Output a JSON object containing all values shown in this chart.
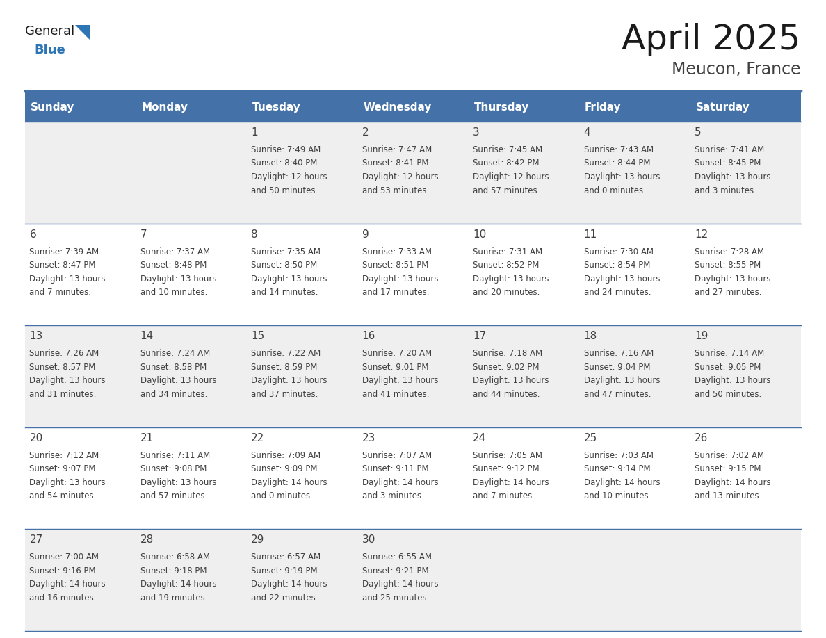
{
  "title": "April 2025",
  "subtitle": "Meucon, France",
  "header_bg_color": "#4472A8",
  "header_text_color": "#FFFFFF",
  "row_bg_colors": [
    "#EFEFEF",
    "#FFFFFF",
    "#EFEFEF",
    "#FFFFFF",
    "#EFEFEF"
  ],
  "border_color": "#4472A8",
  "text_color": "#404040",
  "days_of_week": [
    "Sunday",
    "Monday",
    "Tuesday",
    "Wednesday",
    "Thursday",
    "Friday",
    "Saturday"
  ],
  "calendar_data": [
    [
      {
        "day": "",
        "sunrise": "",
        "sunset": "",
        "daylight_line1": "",
        "daylight_line2": ""
      },
      {
        "day": "",
        "sunrise": "",
        "sunset": "",
        "daylight_line1": "",
        "daylight_line2": ""
      },
      {
        "day": "1",
        "sunrise": "Sunrise: 7:49 AM",
        "sunset": "Sunset: 8:40 PM",
        "daylight_line1": "Daylight: 12 hours",
        "daylight_line2": "and 50 minutes."
      },
      {
        "day": "2",
        "sunrise": "Sunrise: 7:47 AM",
        "sunset": "Sunset: 8:41 PM",
        "daylight_line1": "Daylight: 12 hours",
        "daylight_line2": "and 53 minutes."
      },
      {
        "day": "3",
        "sunrise": "Sunrise: 7:45 AM",
        "sunset": "Sunset: 8:42 PM",
        "daylight_line1": "Daylight: 12 hours",
        "daylight_line2": "and 57 minutes."
      },
      {
        "day": "4",
        "sunrise": "Sunrise: 7:43 AM",
        "sunset": "Sunset: 8:44 PM",
        "daylight_line1": "Daylight: 13 hours",
        "daylight_line2": "and 0 minutes."
      },
      {
        "day": "5",
        "sunrise": "Sunrise: 7:41 AM",
        "sunset": "Sunset: 8:45 PM",
        "daylight_line1": "Daylight: 13 hours",
        "daylight_line2": "and 3 minutes."
      }
    ],
    [
      {
        "day": "6",
        "sunrise": "Sunrise: 7:39 AM",
        "sunset": "Sunset: 8:47 PM",
        "daylight_line1": "Daylight: 13 hours",
        "daylight_line2": "and 7 minutes."
      },
      {
        "day": "7",
        "sunrise": "Sunrise: 7:37 AM",
        "sunset": "Sunset: 8:48 PM",
        "daylight_line1": "Daylight: 13 hours",
        "daylight_line2": "and 10 minutes."
      },
      {
        "day": "8",
        "sunrise": "Sunrise: 7:35 AM",
        "sunset": "Sunset: 8:50 PM",
        "daylight_line1": "Daylight: 13 hours",
        "daylight_line2": "and 14 minutes."
      },
      {
        "day": "9",
        "sunrise": "Sunrise: 7:33 AM",
        "sunset": "Sunset: 8:51 PM",
        "daylight_line1": "Daylight: 13 hours",
        "daylight_line2": "and 17 minutes."
      },
      {
        "day": "10",
        "sunrise": "Sunrise: 7:31 AM",
        "sunset": "Sunset: 8:52 PM",
        "daylight_line1": "Daylight: 13 hours",
        "daylight_line2": "and 20 minutes."
      },
      {
        "day": "11",
        "sunrise": "Sunrise: 7:30 AM",
        "sunset": "Sunset: 8:54 PM",
        "daylight_line1": "Daylight: 13 hours",
        "daylight_line2": "and 24 minutes."
      },
      {
        "day": "12",
        "sunrise": "Sunrise: 7:28 AM",
        "sunset": "Sunset: 8:55 PM",
        "daylight_line1": "Daylight: 13 hours",
        "daylight_line2": "and 27 minutes."
      }
    ],
    [
      {
        "day": "13",
        "sunrise": "Sunrise: 7:26 AM",
        "sunset": "Sunset: 8:57 PM",
        "daylight_line1": "Daylight: 13 hours",
        "daylight_line2": "and 31 minutes."
      },
      {
        "day": "14",
        "sunrise": "Sunrise: 7:24 AM",
        "sunset": "Sunset: 8:58 PM",
        "daylight_line1": "Daylight: 13 hours",
        "daylight_line2": "and 34 minutes."
      },
      {
        "day": "15",
        "sunrise": "Sunrise: 7:22 AM",
        "sunset": "Sunset: 8:59 PM",
        "daylight_line1": "Daylight: 13 hours",
        "daylight_line2": "and 37 minutes."
      },
      {
        "day": "16",
        "sunrise": "Sunrise: 7:20 AM",
        "sunset": "Sunset: 9:01 PM",
        "daylight_line1": "Daylight: 13 hours",
        "daylight_line2": "and 41 minutes."
      },
      {
        "day": "17",
        "sunrise": "Sunrise: 7:18 AM",
        "sunset": "Sunset: 9:02 PM",
        "daylight_line1": "Daylight: 13 hours",
        "daylight_line2": "and 44 minutes."
      },
      {
        "day": "18",
        "sunrise": "Sunrise: 7:16 AM",
        "sunset": "Sunset: 9:04 PM",
        "daylight_line1": "Daylight: 13 hours",
        "daylight_line2": "and 47 minutes."
      },
      {
        "day": "19",
        "sunrise": "Sunrise: 7:14 AM",
        "sunset": "Sunset: 9:05 PM",
        "daylight_line1": "Daylight: 13 hours",
        "daylight_line2": "and 50 minutes."
      }
    ],
    [
      {
        "day": "20",
        "sunrise": "Sunrise: 7:12 AM",
        "sunset": "Sunset: 9:07 PM",
        "daylight_line1": "Daylight: 13 hours",
        "daylight_line2": "and 54 minutes."
      },
      {
        "day": "21",
        "sunrise": "Sunrise: 7:11 AM",
        "sunset": "Sunset: 9:08 PM",
        "daylight_line1": "Daylight: 13 hours",
        "daylight_line2": "and 57 minutes."
      },
      {
        "day": "22",
        "sunrise": "Sunrise: 7:09 AM",
        "sunset": "Sunset: 9:09 PM",
        "daylight_line1": "Daylight: 14 hours",
        "daylight_line2": "and 0 minutes."
      },
      {
        "day": "23",
        "sunrise": "Sunrise: 7:07 AM",
        "sunset": "Sunset: 9:11 PM",
        "daylight_line1": "Daylight: 14 hours",
        "daylight_line2": "and 3 minutes."
      },
      {
        "day": "24",
        "sunrise": "Sunrise: 7:05 AM",
        "sunset": "Sunset: 9:12 PM",
        "daylight_line1": "Daylight: 14 hours",
        "daylight_line2": "and 7 minutes."
      },
      {
        "day": "25",
        "sunrise": "Sunrise: 7:03 AM",
        "sunset": "Sunset: 9:14 PM",
        "daylight_line1": "Daylight: 14 hours",
        "daylight_line2": "and 10 minutes."
      },
      {
        "day": "26",
        "sunrise": "Sunrise: 7:02 AM",
        "sunset": "Sunset: 9:15 PM",
        "daylight_line1": "Daylight: 14 hours",
        "daylight_line2": "and 13 minutes."
      }
    ],
    [
      {
        "day": "27",
        "sunrise": "Sunrise: 7:00 AM",
        "sunset": "Sunset: 9:16 PM",
        "daylight_line1": "Daylight: 14 hours",
        "daylight_line2": "and 16 minutes."
      },
      {
        "day": "28",
        "sunrise": "Sunrise: 6:58 AM",
        "sunset": "Sunset: 9:18 PM",
        "daylight_line1": "Daylight: 14 hours",
        "daylight_line2": "and 19 minutes."
      },
      {
        "day": "29",
        "sunrise": "Sunrise: 6:57 AM",
        "sunset": "Sunset: 9:19 PM",
        "daylight_line1": "Daylight: 14 hours",
        "daylight_line2": "and 22 minutes."
      },
      {
        "day": "30",
        "sunrise": "Sunrise: 6:55 AM",
        "sunset": "Sunset: 9:21 PM",
        "daylight_line1": "Daylight: 14 hours",
        "daylight_line2": "and 25 minutes."
      },
      {
        "day": "",
        "sunrise": "",
        "sunset": "",
        "daylight_line1": "",
        "daylight_line2": ""
      },
      {
        "day": "",
        "sunrise": "",
        "sunset": "",
        "daylight_line1": "",
        "daylight_line2": ""
      },
      {
        "day": "",
        "sunrise": "",
        "sunset": "",
        "daylight_line1": "",
        "daylight_line2": ""
      }
    ]
  ],
  "logo_text1": "General",
  "logo_text2": "Blue",
  "logo_color1": "#1a1a1a",
  "logo_color2": "#2E75B6",
  "title_fontsize": 36,
  "subtitle_fontsize": 17,
  "header_fontsize": 11,
  "day_num_fontsize": 11,
  "cell_text_fontsize": 8.5
}
